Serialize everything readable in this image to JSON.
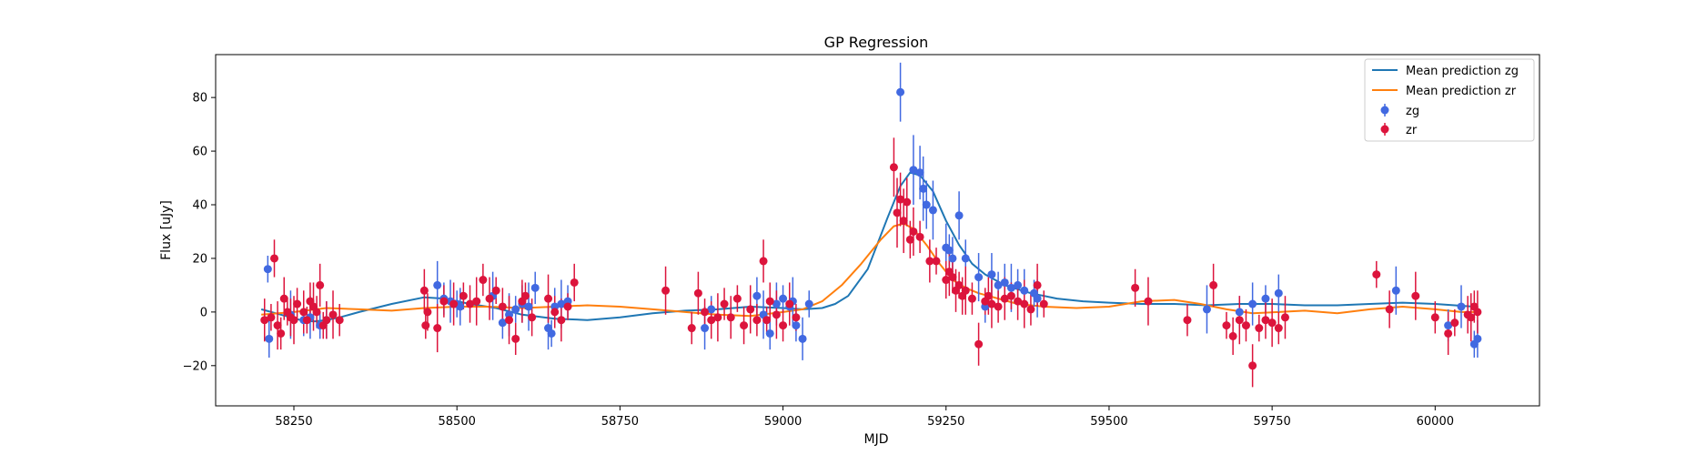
{
  "chart_data": {
    "type": "scatter",
    "title": "GP Regression",
    "xlabel": "MJD",
    "ylabel": "Flux [uJy]",
    "xlim": [
      58130,
      60160
    ],
    "ylim": [
      -35,
      96
    ],
    "x_ticks": [
      58250,
      58500,
      58750,
      59000,
      59250,
      59500,
      59750,
      60000
    ],
    "x_tick_labels": [
      "58250",
      "58500",
      "58750",
      "59000",
      "59250",
      "59500",
      "59750",
      "60000"
    ],
    "y_ticks": [
      -20,
      0,
      20,
      40,
      60,
      80
    ],
    "y_tick_labels": [
      "−20",
      "0",
      "20",
      "40",
      "60",
      "80"
    ],
    "grid": false,
    "legend": {
      "position": "top-right",
      "entries": [
        "Mean prediction zg",
        "Mean prediction zr",
        "zg",
        "zr"
      ]
    },
    "colors": {
      "mean_zg": "#1f77b4",
      "mean_zr": "#ff7f0e",
      "zg": "#4169e1",
      "zr": "#dc143c"
    },
    "lines": [
      {
        "name": "Mean prediction zg",
        "x": [
          58200,
          58230,
          58260,
          58280,
          58300,
          58320,
          58350,
          58400,
          58450,
          58480,
          58520,
          58560,
          58600,
          58650,
          58700,
          58750,
          58800,
          58850,
          58900,
          58950,
          59000,
          59030,
          59060,
          59080,
          59100,
          59130,
          59160,
          59180,
          59195,
          59210,
          59230,
          59250,
          59270,
          59290,
          59310,
          59340,
          59380,
          59420,
          59460,
          59500,
          59550,
          59600,
          59650,
          59700,
          59750,
          59800,
          59850,
          59900,
          59950,
          60000,
          60030,
          60060
        ],
        "y": [
          1,
          -1,
          -3,
          -3.5,
          -3,
          -2,
          0,
          3,
          5.5,
          5,
          3,
          1.5,
          -1,
          -2.5,
          -3,
          -2,
          -0.5,
          0.5,
          1,
          2,
          1.5,
          1,
          1.5,
          3,
          6,
          16,
          35,
          47,
          52,
          51,
          45,
          34,
          25,
          18,
          14,
          10,
          7,
          5,
          4,
          3.5,
          3,
          3,
          2.5,
          3,
          3,
          2.5,
          2.5,
          3,
          3.5,
          3,
          2.5,
          2
        ]
      },
      {
        "name": "Mean prediction zr",
        "x": [
          58200,
          58250,
          58300,
          58350,
          58400,
          58450,
          58500,
          58550,
          58600,
          58650,
          58700,
          58750,
          58800,
          58850,
          58900,
          58950,
          59000,
          59030,
          59060,
          59090,
          59120,
          59150,
          59170,
          59185,
          59200,
          59220,
          59240,
          59260,
          59280,
          59300,
          59330,
          59360,
          59400,
          59450,
          59500,
          59550,
          59600,
          59640,
          59680,
          59720,
          59760,
          59800,
          59850,
          59900,
          59950,
          60000,
          60040,
          60060
        ],
        "y": [
          -1,
          0,
          1.5,
          1,
          0.5,
          1.5,
          2,
          2,
          1.5,
          2,
          2.5,
          2,
          1,
          0,
          -1,
          -1.5,
          0,
          1,
          4,
          10,
          18,
          27,
          32,
          33,
          31,
          25,
          18,
          12,
          9,
          7,
          5,
          3,
          2,
          1.5,
          2,
          4,
          4.5,
          3,
          1,
          -0.5,
          0,
          0.5,
          -0.5,
          1,
          2,
          1,
          0,
          0
        ]
      }
    ],
    "series": [
      {
        "name": "zg",
        "x": [
          58210,
          58212,
          58245,
          58265,
          58275,
          58290,
          58300,
          58470,
          58480,
          58490,
          58500,
          58505,
          58555,
          58570,
          58580,
          58590,
          58600,
          58610,
          58620,
          58640,
          58645,
          58650,
          58660,
          58670,
          58880,
          58890,
          58960,
          58970,
          58980,
          58990,
          59000,
          59010,
          59015,
          59020,
          59030,
          59040,
          59180,
          59200,
          59210,
          59215,
          59220,
          59230,
          59250,
          59255,
          59260,
          59270,
          59280,
          59300,
          59310,
          59320,
          59330,
          59340,
          59350,
          59360,
          59370,
          59385,
          59390,
          59650,
          59700,
          59720,
          59740,
          59760,
          59940,
          60020,
          60040,
          60060,
          60065
        ],
        "y": [
          16,
          -10,
          -1,
          -3,
          -2,
          -5,
          -3,
          10,
          5,
          4,
          3,
          2,
          6,
          -4,
          -1,
          1,
          3,
          2,
          9,
          -6,
          -8,
          2,
          3,
          4,
          -6,
          1,
          6,
          -1,
          -8,
          3,
          5,
          2,
          4,
          -5,
          -10,
          3,
          82,
          53,
          52,
          46,
          40,
          38,
          24,
          23,
          20,
          36,
          20,
          13,
          2,
          14,
          10,
          11,
          9,
          10,
          8,
          7,
          5,
          1,
          0,
          3,
          5,
          7,
          8,
          -5,
          2,
          -12,
          -10
        ]
      },
      {
        "name": "zr",
        "x": [
          58205,
          58215,
          58220,
          58225,
          58230,
          58235,
          58240,
          58245,
          58250,
          58255,
          58265,
          58270,
          58275,
          58280,
          58285,
          58290,
          58295,
          58300,
          58310,
          58320,
          58450,
          58452,
          58455,
          58470,
          58480,
          58495,
          58510,
          58520,
          58530,
          58540,
          58550,
          58560,
          58570,
          58580,
          58590,
          58600,
          58605,
          58615,
          58640,
          58650,
          58660,
          58670,
          58680,
          58820,
          58860,
          58870,
          58880,
          58890,
          58900,
          58910,
          58920,
          58930,
          58940,
          58950,
          58960,
          58970,
          58975,
          58980,
          58990,
          59000,
          59010,
          59020,
          59170,
          59175,
          59180,
          59185,
          59190,
          59195,
          59200,
          59210,
          59225,
          59235,
          59250,
          59255,
          59260,
          59265,
          59270,
          59275,
          59280,
          59290,
          59300,
          59310,
          59315,
          59320,
          59330,
          59340,
          59350,
          59360,
          59370,
          59380,
          59390,
          59400,
          59540,
          59560,
          59620,
          59660,
          59680,
          59690,
          59700,
          59710,
          59720,
          59730,
          59740,
          59750,
          59760,
          59770,
          59910,
          59930,
          59970,
          60000,
          60020,
          60030,
          60050,
          60055,
          60060,
          60065
        ],
        "y": [
          -3,
          -2,
          20,
          -5,
          -8,
          5,
          0,
          -2,
          -3,
          3,
          0,
          -3,
          4,
          2,
          0,
          10,
          -5,
          -3,
          -1,
          -3,
          8,
          -5,
          0,
          -6,
          4,
          3,
          6,
          3,
          4,
          12,
          5,
          8,
          2,
          -3,
          -10,
          4,
          6,
          -2,
          5,
          0,
          -3,
          2,
          11,
          8,
          -6,
          7,
          0,
          -3,
          -2,
          3,
          -2,
          5,
          -5,
          1,
          -3,
          19,
          -3,
          4,
          -1,
          -5,
          3,
          -2,
          54,
          37,
          42,
          34,
          41,
          27,
          30,
          28,
          19,
          19,
          12,
          15,
          13,
          8,
          10,
          6,
          8,
          5,
          -12,
          4,
          6,
          3,
          2,
          5,
          6,
          4,
          3,
          1,
          10,
          3,
          9,
          4,
          -3,
          10,
          -5,
          -9,
          -3,
          -5,
          -20,
          -6,
          -3,
          -4,
          -6,
          -2,
          14,
          1,
          6,
          -2,
          -8,
          -4,
          -1,
          -2,
          2,
          0
        ]
      }
    ]
  }
}
